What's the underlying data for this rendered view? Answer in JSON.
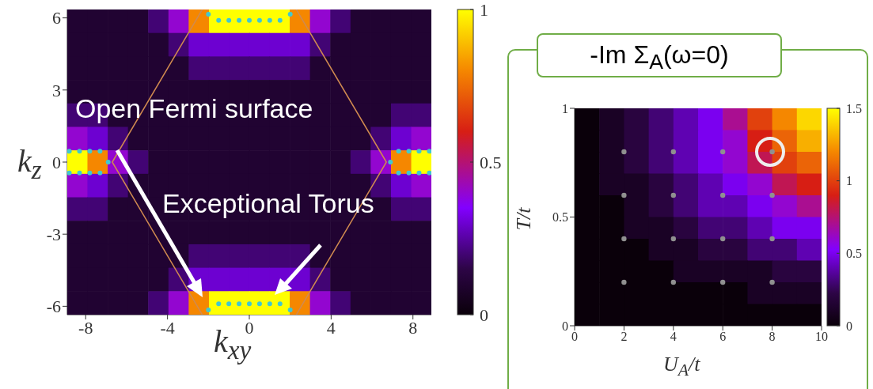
{
  "chart_data": [
    {
      "type": "heatmap",
      "xlabel": "k$_{xy}$",
      "ylabel": "k$_{z}$",
      "x": [
        -8.41,
        -7.42,
        -6.43,
        -5.44,
        -4.45,
        -3.46,
        -2.47,
        -1.48,
        -0.49,
        0.49,
        1.48,
        2.47,
        3.46,
        4.45,
        5.44,
        6.43,
        7.42,
        8.41
      ],
      "xlim": [
        -8.9,
        8.9
      ],
      "xticks": [
        -8,
        -4,
        0,
        4,
        8
      ],
      "ylim": [
        -6.35,
        6.35
      ],
      "yticks": [
        -6,
        -3,
        0,
        3,
        6
      ],
      "clim": [
        0,
        1
      ],
      "cticks": [
        0,
        0.5,
        1
      ],
      "cells": [
        [
          0.1,
          0.1,
          0.1,
          0.1,
          0.2,
          0.4,
          0.8,
          1,
          1,
          1,
          1,
          0.8,
          0.4,
          0.2,
          0.1,
          0.1,
          0.1,
          0.1
        ],
        [
          0.1,
          0.1,
          0.1,
          0.1,
          0.1,
          0.2,
          0.3,
          0.3,
          0.3,
          0.3,
          0.3,
          0.3,
          0.2,
          0.1,
          0.1,
          0.1,
          0.1,
          0.1
        ],
        [
          0.1,
          0.1,
          0.1,
          0.1,
          0.1,
          0.1,
          0.2,
          0.2,
          0.2,
          0.2,
          0.2,
          0.2,
          0.1,
          0.1,
          0.1,
          0.1,
          0.1,
          0.1
        ],
        [
          0.1,
          0.1,
          0.1,
          0.1,
          0.1,
          0.1,
          0.1,
          0.1,
          0.1,
          0.1,
          0.1,
          0.1,
          0.1,
          0.1,
          0.1,
          0.1,
          0.1,
          0.1
        ],
        [
          0.2,
          0.2,
          0.1,
          0.1,
          0.1,
          0.1,
          0.1,
          0.1,
          0.1,
          0.1,
          0.1,
          0.1,
          0.1,
          0.1,
          0.1,
          0.1,
          0.2,
          0.2
        ],
        [
          0.4,
          0.3,
          0.2,
          0.1,
          0.1,
          0.1,
          0.1,
          0.1,
          0.1,
          0.1,
          0.1,
          0.1,
          0.1,
          0.1,
          0.1,
          0.2,
          0.3,
          0.4
        ],
        [
          1,
          0.8,
          0.4,
          0.2,
          0.1,
          0.1,
          0.1,
          0.1,
          0.1,
          0.1,
          0.1,
          0.1,
          0.1,
          0.1,
          0.2,
          0.4,
          0.8,
          1
        ],
        [
          0.4,
          0.3,
          0.2,
          0.1,
          0.1,
          0.1,
          0.1,
          0.1,
          0.1,
          0.1,
          0.1,
          0.1,
          0.1,
          0.1,
          0.1,
          0.2,
          0.3,
          0.4
        ],
        [
          0.2,
          0.2,
          0.1,
          0.1,
          0.1,
          0.1,
          0.1,
          0.1,
          0.1,
          0.1,
          0.1,
          0.1,
          0.1,
          0.1,
          0.1,
          0.1,
          0.2,
          0.2
        ],
        [
          0.1,
          0.1,
          0.1,
          0.1,
          0.1,
          0.1,
          0.1,
          0.1,
          0.1,
          0.1,
          0.1,
          0.1,
          0.1,
          0.1,
          0.1,
          0.1,
          0.1,
          0.1
        ],
        [
          0.1,
          0.1,
          0.1,
          0.1,
          0.1,
          0.1,
          0.2,
          0.2,
          0.2,
          0.2,
          0.2,
          0.2,
          0.1,
          0.1,
          0.1,
          0.1,
          0.1,
          0.1
        ],
        [
          0.1,
          0.1,
          0.1,
          0.1,
          0.1,
          0.2,
          0.3,
          0.3,
          0.3,
          0.3,
          0.3,
          0.3,
          0.2,
          0.1,
          0.1,
          0.1,
          0.1,
          0.1
        ],
        [
          0.1,
          0.1,
          0.1,
          0.1,
          0.2,
          0.4,
          0.8,
          1,
          1,
          1,
          1,
          0.8,
          0.4,
          0.2,
          0.1,
          0.1,
          0.1,
          0.1
        ]
      ],
      "series": [
        {
          "type": "line",
          "color": "#d08a50",
          "x": [
            -2.3,
            -6.7,
            -2.3
          ],
          "values": [
            6.35,
            0,
            -6.35
          ]
        },
        {
          "type": "line",
          "color": "#d08a50",
          "x": [
            2.3,
            6.7,
            2.3
          ],
          "values": [
            6.35,
            0,
            -6.35
          ]
        },
        {
          "type": "scatter",
          "color": "#40c8d0",
          "x": [
            -1.5,
            -1,
            -0.5,
            0,
            0.5,
            1,
            1.5,
            -2,
            2,
            -1.5,
            -1,
            -0.5,
            0,
            0.5,
            1,
            1.5,
            -2,
            2,
            -8.8,
            -8.3,
            -7.8,
            -7.3,
            -8.8,
            -8.3,
            -7.8,
            -7.3,
            -6.9,
            8.8,
            8.3,
            7.8,
            7.3,
            8.8,
            8.3,
            7.8,
            7.3,
            6.9
          ],
          "values": [
            5.9,
            5.9,
            5.9,
            5.9,
            5.9,
            5.9,
            5.9,
            6.15,
            6.15,
            -5.9,
            -5.9,
            -5.9,
            -5.9,
            -5.9,
            -5.9,
            -5.9,
            -6.15,
            -6.15,
            0.45,
            0.45,
            0.45,
            0.45,
            -0.45,
            -0.45,
            -0.45,
            -0.45,
            0,
            0.45,
            0.45,
            0.45,
            0.45,
            -0.45,
            -0.45,
            -0.45,
            -0.45,
            0
          ]
        }
      ],
      "annotations": [
        "Open Fermi surface",
        "Exceptional Torus"
      ]
    },
    {
      "type": "heatmap",
      "title": "-Im Σ$_{A}$(ω=0)",
      "xlabel": "U$_{A}$/t",
      "ylabel": "T/t",
      "x": [
        0.5,
        1.5,
        2.5,
        3.5,
        4.5,
        5.5,
        6.5,
        7.5,
        8.5,
        9.5
      ],
      "xlim": [
        0,
        10
      ],
      "xticks": [
        0,
        2,
        4,
        6,
        8,
        10
      ],
      "ylim": [
        0,
        1
      ],
      "yticks": [
        0,
        0.5,
        1
      ],
      "clim": [
        0,
        1.5
      ],
      "cticks": [
        0,
        0.5,
        1,
        1.5
      ],
      "cells": [
        [
          0,
          0.1,
          0.2,
          0.3,
          0.4,
          0.5,
          0.7,
          1,
          1.2,
          1.4
        ],
        [
          0,
          0.1,
          0.2,
          0.3,
          0.4,
          0.5,
          0.6,
          0.9,
          1.1,
          1.3
        ],
        [
          0,
          0.1,
          0.2,
          0.3,
          0.4,
          0.5,
          0.6,
          0.8,
          1,
          1.1
        ],
        [
          0,
          0.1,
          0.1,
          0.2,
          0.3,
          0.4,
          0.5,
          0.6,
          0.8,
          0.9
        ],
        [
          0,
          0,
          0.1,
          0.2,
          0.3,
          0.4,
          0.4,
          0.5,
          0.6,
          0.7
        ],
        [
          0,
          0,
          0.1,
          0.1,
          0.2,
          0.3,
          0.3,
          0.4,
          0.5,
          0.5
        ],
        [
          0,
          0,
          0,
          0.1,
          0.1,
          0.2,
          0.2,
          0.3,
          0.3,
          0.4
        ],
        [
          0,
          0,
          0,
          0,
          0.1,
          0.1,
          0.1,
          0.1,
          0.2,
          0.2
        ],
        [
          0,
          0,
          0,
          0,
          0,
          0,
          0,
          0.1,
          0.1,
          0.1
        ],
        [
          0,
          0,
          0,
          0,
          0,
          0,
          0,
          0,
          0,
          0
        ]
      ],
      "series": [
        {
          "type": "scatter",
          "color": "#909090",
          "x": [
            2,
            4,
            6,
            8,
            2,
            4,
            6,
            8,
            2,
            4,
            6,
            8,
            2,
            4,
            6,
            8
          ],
          "values": [
            0.8,
            0.8,
            0.8,
            0.8,
            0.6,
            0.6,
            0.6,
            0.6,
            0.4,
            0.4,
            0.4,
            0.4,
            0.2,
            0.2,
            0.2,
            0.2
          ]
        }
      ]
    }
  ]
}
